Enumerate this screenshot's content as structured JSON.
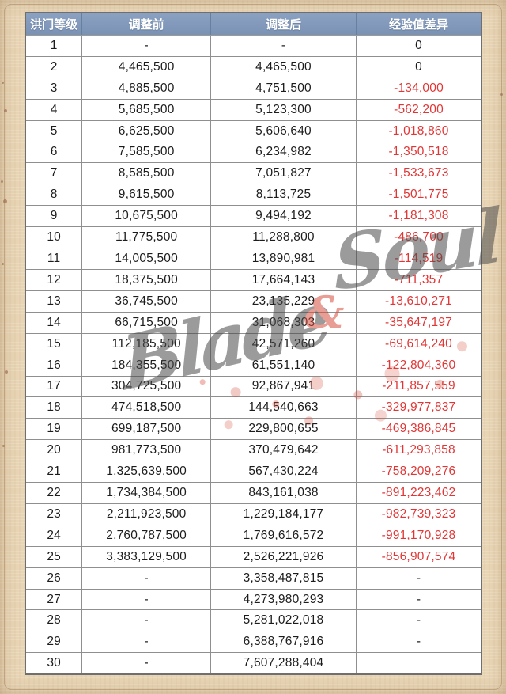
{
  "colors": {
    "frame_beige": "#e8d5b5",
    "header_bg": "#7e95b6",
    "header_text": "#ffffff",
    "body_text": "#1c1c1c",
    "negative_red": "#e23636",
    "grid_line": "#8f8f8f",
    "table_bg": "#ffffff"
  },
  "watermark": {
    "word1": "Blade",
    "symbol": "&",
    "word2": "Soul"
  },
  "chart_data": {
    "type": "table",
    "columns": [
      "洪门等级",
      "调整前",
      "调整后",
      "经验值差异"
    ],
    "rows": [
      [
        "1",
        "-",
        "-",
        "0"
      ],
      [
        "2",
        "4,465,500",
        "4,465,500",
        "0"
      ],
      [
        "3",
        "4,885,500",
        "4,751,500",
        "-134,000"
      ],
      [
        "4",
        "5,685,500",
        "5,123,300",
        "-562,200"
      ],
      [
        "5",
        "6,625,500",
        "5,606,640",
        "-1,018,860"
      ],
      [
        "6",
        "7,585,500",
        "6,234,982",
        "-1,350,518"
      ],
      [
        "7",
        "8,585,500",
        "7,051,827",
        "-1,533,673"
      ],
      [
        "8",
        "9,615,500",
        "8,113,725",
        "-1,501,775"
      ],
      [
        "9",
        "10,675,500",
        "9,494,192",
        "-1,181,308"
      ],
      [
        "10",
        "11,775,500",
        "11,288,800",
        "-486,700"
      ],
      [
        "11",
        "14,005,500",
        "13,890,981",
        "-114,519"
      ],
      [
        "12",
        "18,375,500",
        "17,664,143",
        "-711,357"
      ],
      [
        "13",
        "36,745,500",
        "23,135,229",
        "-13,610,271"
      ],
      [
        "14",
        "66,715,500",
        "31,068,303",
        "-35,647,197"
      ],
      [
        "15",
        "112,185,500",
        "42,571,260",
        "-69,614,240"
      ],
      [
        "16",
        "184,355,500",
        "61,551,140",
        "-122,804,360"
      ],
      [
        "17",
        "304,725,500",
        "92,867,941",
        "-211,857,559"
      ],
      [
        "18",
        "474,518,500",
        "144,540,663",
        "-329,977,837"
      ],
      [
        "19",
        "699,187,500",
        "229,800,655",
        "-469,386,845"
      ],
      [
        "20",
        "981,773,500",
        "370,479,642",
        "-611,293,858"
      ],
      [
        "21",
        "1,325,639,500",
        "567,430,224",
        "-758,209,276"
      ],
      [
        "22",
        "1,734,384,500",
        "843,161,038",
        "-891,223,462"
      ],
      [
        "23",
        "2,211,923,500",
        "1,229,184,177",
        "-982,739,323"
      ],
      [
        "24",
        "2,760,787,500",
        "1,769,616,572",
        "-991,170,928"
      ],
      [
        "25",
        "3,383,129,500",
        "2,526,221,926",
        "-856,907,574"
      ],
      [
        "26",
        "-",
        "3,358,487,815",
        "-"
      ],
      [
        "27",
        "-",
        "4,273,980,293",
        "-"
      ],
      [
        "28",
        "-",
        "5,281,022,018",
        "-"
      ],
      [
        "29",
        "-",
        "6,388,767,916",
        "-"
      ],
      [
        "30",
        "-",
        "7,607,288,404",
        ""
      ]
    ]
  }
}
